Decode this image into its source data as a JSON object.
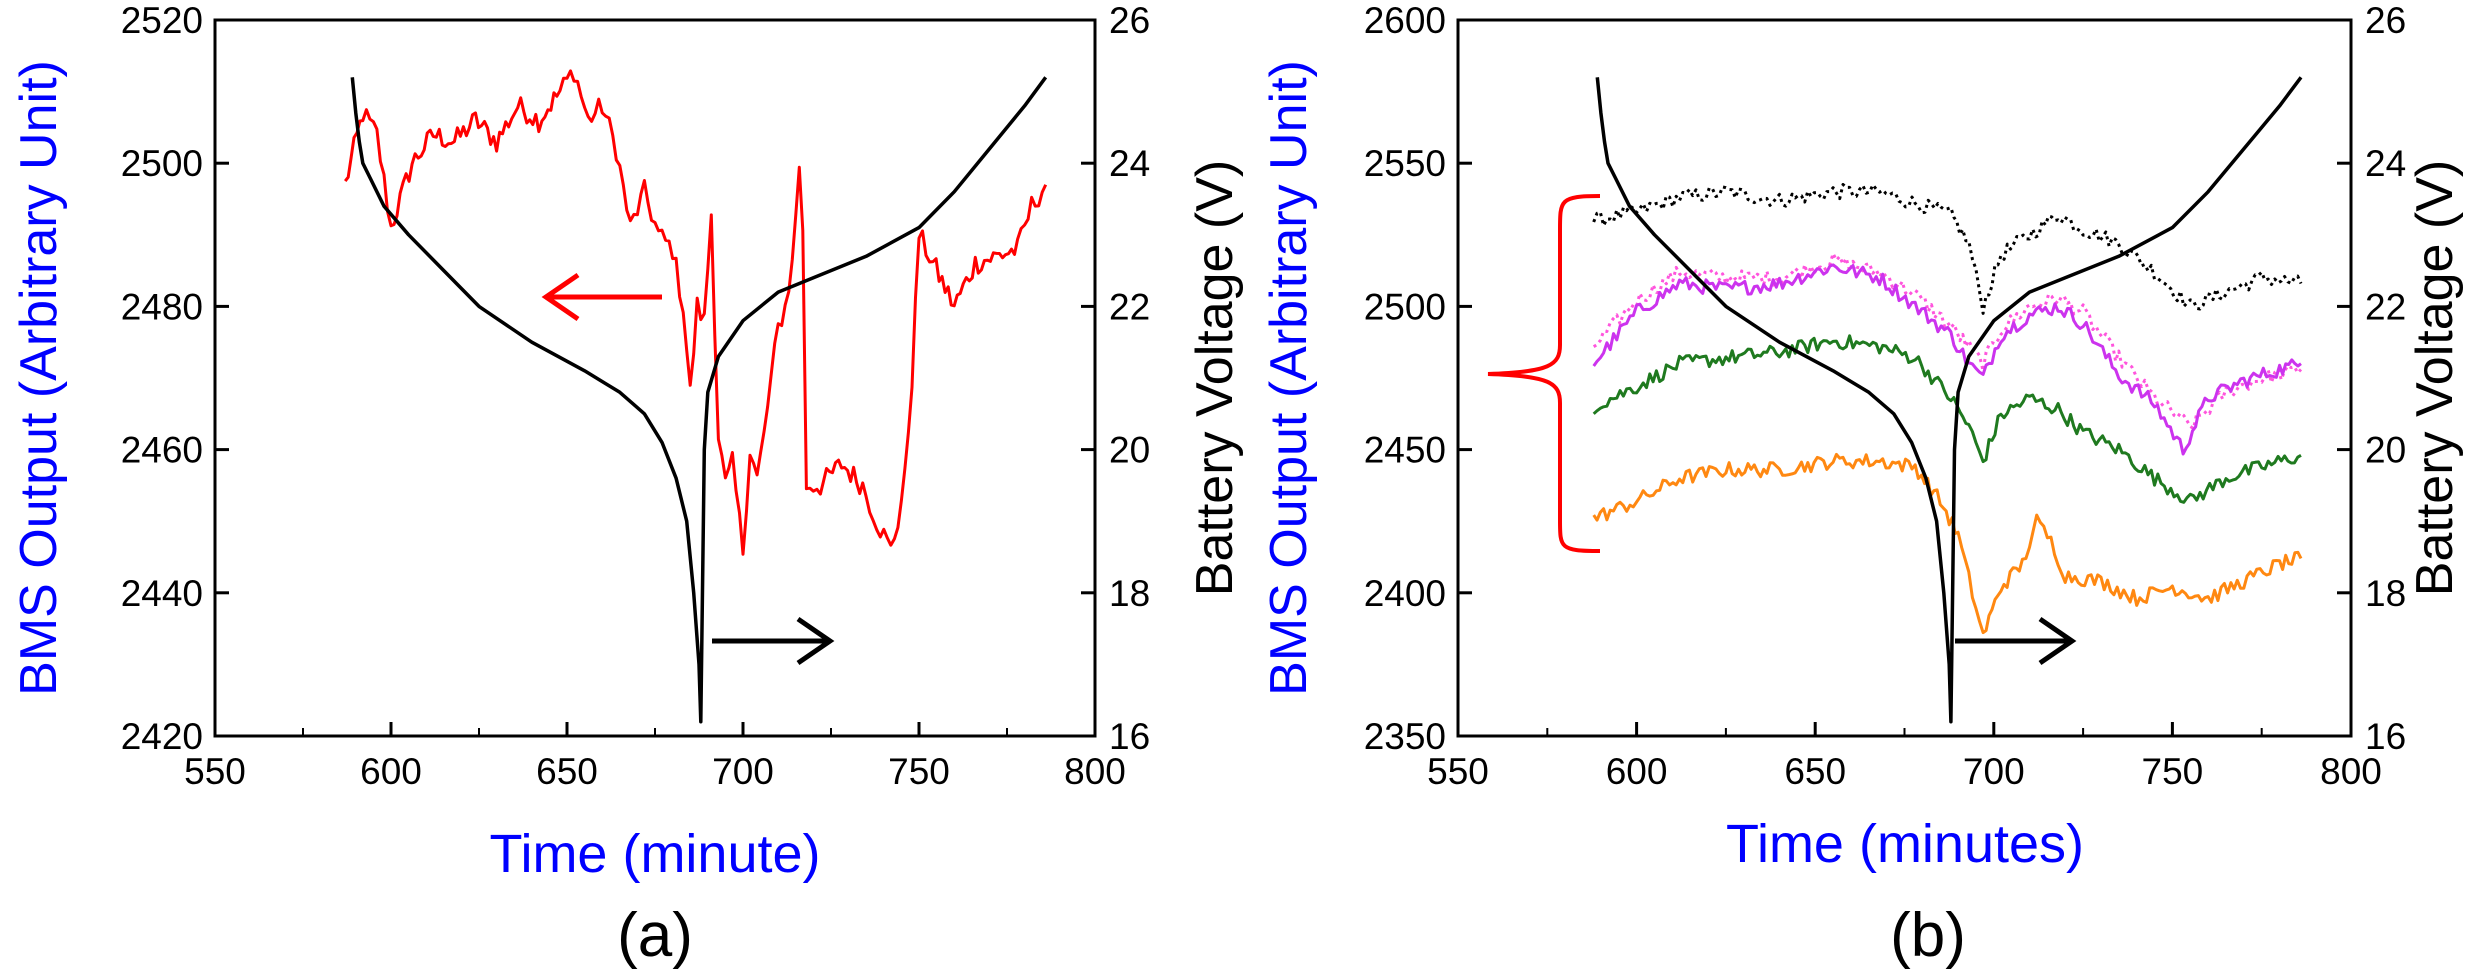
{
  "colors": {
    "left_axis_label": "#0000ff",
    "x_axis_label": "#0000ff",
    "bms_a": "#ff0000",
    "voltage": "#000000",
    "arrow_left_panel_a": "#ff0000",
    "arrow_right": "#000000",
    "bracket": "#ff0000",
    "series_b_black_dotted": "#000000",
    "series_b_magenta_dotted": "#ff55dd",
    "series_b_magenta": "#cc33ee",
    "series_b_green": "#1f7a1f",
    "series_b_orange": "#ff8811"
  },
  "chart_data": [
    {
      "type": "line",
      "panel_label": "(a)",
      "xlabel": "Time (minute)",
      "ylabel_left": "BMS Output (Arbitrary Unit)",
      "ylabel_right": "Battery Voltage (V)",
      "xlim": [
        550,
        800
      ],
      "x_ticks": [
        "550",
        "600",
        "650",
        "700",
        "750",
        "800"
      ],
      "ylim_left": [
        2420,
        2520
      ],
      "y_ticks_left": [
        "2420",
        "2440",
        "2460",
        "2480",
        "2500",
        "2520"
      ],
      "ylim_right": [
        16,
        26
      ],
      "y_ticks_right": [
        "16",
        "18",
        "20",
        "22",
        "24",
        "26"
      ],
      "grid": false,
      "series": [
        {
          "axis": "left",
          "style": "solid",
          "color": "#ff0000",
          "x": [
            587,
            592,
            596,
            600,
            606,
            612,
            618,
            624,
            630,
            636,
            642,
            648,
            652,
            656,
            660,
            664,
            668,
            672,
            676,
            680,
            683,
            685,
            687,
            689,
            691,
            693,
            695,
            697,
            700,
            702,
            704,
            706,
            708,
            710,
            712,
            714,
            716,
            717,
            718,
            722,
            728,
            734,
            738,
            742,
            744,
            746,
            748,
            750,
            754,
            760,
            766,
            772,
            778,
            782,
            786
          ],
          "y": [
            2497,
            2507,
            2504,
            2491,
            2500,
            2504,
            2503,
            2506,
            2503,
            2508,
            2506,
            2510,
            2513,
            2506,
            2508,
            2502,
            2491,
            2496,
            2490,
            2488,
            2480,
            2468,
            2480,
            2478,
            2493,
            2462,
            2455,
            2458,
            2446,
            2460,
            2456,
            2462,
            2470,
            2477,
            2480,
            2486,
            2500,
            2490,
            2455,
            2455,
            2458,
            2455,
            2450,
            2446,
            2450,
            2456,
            2470,
            2490,
            2486,
            2480,
            2486,
            2487,
            2488,
            2494,
            2497
          ]
        },
        {
          "axis": "right",
          "style": "solid",
          "color": "#000000",
          "x": [
            589,
            590,
            591,
            592,
            594,
            598,
            605,
            615,
            625,
            640,
            655,
            665,
            672,
            677,
            681,
            684,
            686,
            687.5,
            688,
            689,
            690,
            693,
            700,
            710,
            720,
            735,
            750,
            760,
            770,
            780,
            786
          ],
          "y": [
            25.2,
            24.7,
            24.3,
            24.0,
            23.8,
            23.4,
            23.0,
            22.5,
            22.0,
            21.5,
            21.1,
            20.8,
            20.5,
            20.1,
            19.6,
            19.0,
            18.0,
            17.0,
            16.2,
            20.0,
            20.8,
            21.3,
            21.8,
            22.2,
            22.4,
            22.7,
            23.1,
            23.6,
            24.2,
            24.8,
            25.2
          ]
        }
      ],
      "annotations": [
        {
          "type": "arrow",
          "direction": "left",
          "color": "#ff0000",
          "meaning": "red curve uses left axis"
        },
        {
          "type": "arrow",
          "direction": "right",
          "color": "#000000",
          "meaning": "black curve uses right axis"
        }
      ]
    },
    {
      "type": "line",
      "panel_label": "(b)",
      "xlabel": "Time (minutes)",
      "ylabel_left": "BMS Output (Arbitrary Unit)",
      "ylabel_right": "Battery Voltage (V)",
      "xlim": [
        550,
        800
      ],
      "x_ticks": [
        "550",
        "600",
        "650",
        "700",
        "750",
        "800"
      ],
      "ylim_left": [
        2350,
        2600
      ],
      "y_ticks_left": [
        "2350",
        "2400",
        "2450",
        "2500",
        "2550",
        "2600"
      ],
      "ylim_right": [
        16,
        26
      ],
      "y_ticks_right": [
        "16",
        "18",
        "20",
        "22",
        "24",
        "26"
      ],
      "grid": false,
      "series": [
        {
          "axis": "left",
          "style": "dotted",
          "color": "#000000",
          "x": [
            588,
            600,
            612,
            625,
            640,
            655,
            668,
            678,
            688,
            693,
            697,
            702,
            710,
            718,
            725,
            735,
            745,
            755,
            765,
            775,
            786
          ],
          "y": [
            2530,
            2533,
            2538,
            2540,
            2537,
            2540,
            2540,
            2536,
            2532,
            2522,
            2500,
            2518,
            2525,
            2532,
            2527,
            2522,
            2512,
            2500,
            2505,
            2510,
            2508
          ]
        },
        {
          "axis": "left",
          "style": "dotted",
          "color": "#ff55dd",
          "x": [
            588,
            600,
            612,
            625,
            640,
            655,
            668,
            678,
            688,
            693,
            697,
            702,
            710,
            718,
            725,
            735,
            745,
            755,
            765,
            775,
            786
          ],
          "y": [
            2486,
            2502,
            2512,
            2510,
            2510,
            2516,
            2512,
            2504,
            2493,
            2486,
            2480,
            2492,
            2500,
            2503,
            2498,
            2482,
            2468,
            2458,
            2470,
            2475,
            2478
          ]
        },
        {
          "axis": "left",
          "style": "solid",
          "color": "#cc33ee",
          "x": [
            588,
            600,
            612,
            625,
            640,
            655,
            668,
            678,
            688,
            693,
            697,
            702,
            710,
            718,
            725,
            735,
            745,
            753,
            760,
            770,
            780,
            786
          ],
          "y": [
            2480,
            2498,
            2508,
            2506,
            2508,
            2514,
            2510,
            2500,
            2490,
            2480,
            2475,
            2490,
            2497,
            2500,
            2494,
            2476,
            2466,
            2450,
            2468,
            2474,
            2478,
            2480
          ]
        },
        {
          "axis": "left",
          "style": "solid",
          "color": "#1f7a1f",
          "x": [
            588,
            600,
            612,
            625,
            640,
            655,
            668,
            678,
            688,
            693,
            697,
            702,
            710,
            718,
            725,
            735,
            745,
            755,
            765,
            775,
            786
          ],
          "y": [
            2465,
            2472,
            2480,
            2482,
            2484,
            2488,
            2486,
            2482,
            2468,
            2458,
            2446,
            2462,
            2468,
            2464,
            2456,
            2450,
            2440,
            2432,
            2440,
            2444,
            2448
          ]
        },
        {
          "axis": "left",
          "style": "solid",
          "color": "#ff8811",
          "x": [
            588,
            600,
            612,
            625,
            640,
            655,
            668,
            678,
            685,
            690,
            694,
            697,
            702,
            708,
            712,
            716,
            720,
            730,
            740,
            750,
            760,
            770,
            780,
            786
          ],
          "y": [
            2426,
            2432,
            2440,
            2443,
            2443,
            2446,
            2446,
            2444,
            2432,
            2420,
            2400,
            2385,
            2402,
            2410,
            2425,
            2418,
            2406,
            2404,
            2398,
            2402,
            2398,
            2404,
            2410,
            2412
          ]
        },
        {
          "axis": "right",
          "style": "solid",
          "color": "#000000",
          "x": [
            589,
            590,
            591,
            592,
            594,
            598,
            605,
            615,
            625,
            640,
            655,
            665,
            672,
            677,
            681,
            684,
            686,
            687.5,
            688,
            689,
            690,
            693,
            700,
            710,
            720,
            735,
            750,
            760,
            770,
            780,
            786
          ],
          "y": [
            25.2,
            24.7,
            24.3,
            24.0,
            23.8,
            23.4,
            23.0,
            22.5,
            22.0,
            21.5,
            21.1,
            20.8,
            20.5,
            20.1,
            19.6,
            19.0,
            18.0,
            17.0,
            16.2,
            20.0,
            20.8,
            21.3,
            21.8,
            22.2,
            22.4,
            22.7,
            23.1,
            23.6,
            24.2,
            24.8,
            25.2
          ]
        }
      ],
      "annotations": [
        {
          "type": "bracket",
          "color": "#ff0000",
          "meaning": "groups the four upper BMS traces"
        },
        {
          "type": "arrow",
          "direction": "right",
          "color": "#000000",
          "meaning": "black curve uses right axis"
        }
      ]
    }
  ]
}
